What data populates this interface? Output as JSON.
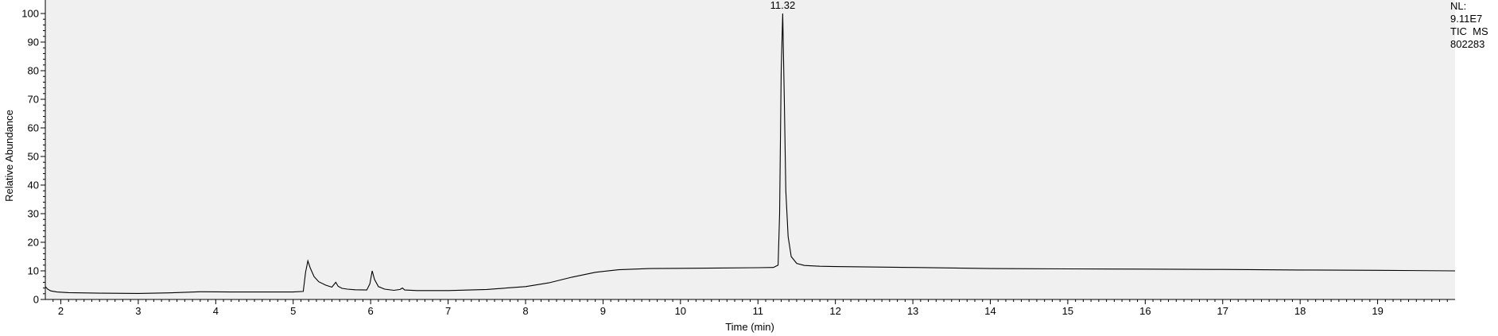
{
  "chart_data": {
    "type": "line",
    "title": "",
    "xlabel": "Time (min)",
    "ylabel": "Relative Abundance",
    "xlim": [
      1.8,
      20.0
    ],
    "ylim": [
      0,
      100
    ],
    "x_ticks": [
      2,
      3,
      4,
      5,
      6,
      7,
      8,
      9,
      10,
      11,
      12,
      13,
      14,
      15,
      16,
      17,
      18,
      19
    ],
    "y_ticks": [
      0,
      10,
      20,
      30,
      40,
      50,
      60,
      70,
      80,
      90,
      100
    ],
    "grid": false,
    "peak_annotations": [
      {
        "x": 11.32,
        "label": "11.32"
      }
    ],
    "series": [
      {
        "points": [
          [
            1.8,
            4.5
          ],
          [
            1.83,
            3.6
          ],
          [
            1.87,
            3.0
          ],
          [
            1.95,
            2.6
          ],
          [
            2.1,
            2.4
          ],
          [
            2.5,
            2.2
          ],
          [
            3.0,
            2.1
          ],
          [
            3.4,
            2.3
          ],
          [
            3.8,
            2.7
          ],
          [
            4.2,
            2.6
          ],
          [
            4.6,
            2.6
          ],
          [
            5.0,
            2.6
          ],
          [
            5.13,
            2.8
          ],
          [
            5.16,
            9.5
          ],
          [
            5.19,
            13.5
          ],
          [
            5.22,
            11.0
          ],
          [
            5.27,
            8.0
          ],
          [
            5.33,
            6.2
          ],
          [
            5.42,
            5.0
          ],
          [
            5.5,
            4.3
          ],
          [
            5.55,
            6.0
          ],
          [
            5.58,
            4.6
          ],
          [
            5.63,
            3.9
          ],
          [
            5.7,
            3.6
          ],
          [
            5.8,
            3.4
          ],
          [
            5.95,
            3.3
          ],
          [
            5.99,
            5.5
          ],
          [
            6.02,
            10.0
          ],
          [
            6.05,
            7.0
          ],
          [
            6.1,
            4.5
          ],
          [
            6.18,
            3.6
          ],
          [
            6.3,
            3.2
          ],
          [
            6.38,
            3.5
          ],
          [
            6.41,
            4.0
          ],
          [
            6.44,
            3.3
          ],
          [
            6.6,
            3.1
          ],
          [
            7.0,
            3.1
          ],
          [
            7.5,
            3.5
          ],
          [
            8.0,
            4.5
          ],
          [
            8.3,
            5.8
          ],
          [
            8.6,
            7.8
          ],
          [
            8.9,
            9.5
          ],
          [
            9.2,
            10.4
          ],
          [
            9.6,
            10.8
          ],
          [
            10.0,
            10.9
          ],
          [
            10.5,
            11.0
          ],
          [
            11.0,
            11.1
          ],
          [
            11.2,
            11.2
          ],
          [
            11.26,
            12.0
          ],
          [
            11.28,
            30.0
          ],
          [
            11.3,
            80.0
          ],
          [
            11.32,
            100.0
          ],
          [
            11.34,
            70.0
          ],
          [
            11.36,
            38.0
          ],
          [
            11.39,
            22.0
          ],
          [
            11.43,
            15.0
          ],
          [
            11.5,
            12.6
          ],
          [
            11.6,
            11.9
          ],
          [
            11.8,
            11.6
          ],
          [
            12.0,
            11.5
          ],
          [
            13.0,
            11.2
          ],
          [
            14.0,
            10.8
          ],
          [
            15.0,
            10.7
          ],
          [
            16.0,
            10.6
          ],
          [
            17.0,
            10.5
          ],
          [
            18.0,
            10.3
          ],
          [
            19.0,
            10.2
          ],
          [
            20.0,
            10.0
          ]
        ]
      }
    ]
  },
  "info": {
    "nl_label": "NL:",
    "nl_value": "9.11E7",
    "trace": "TIC  MS",
    "sample": "802283"
  }
}
